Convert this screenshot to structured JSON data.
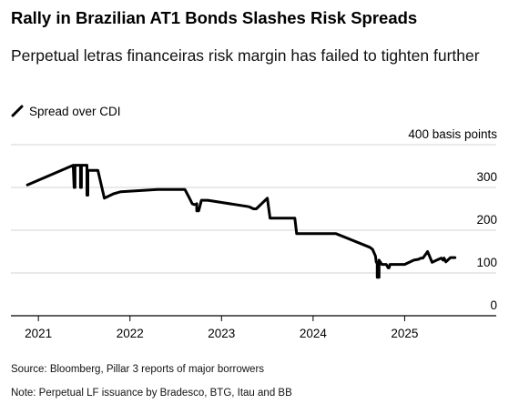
{
  "title": "Rally in Brazilian AT1 Bonds Slashes Risk Spreads",
  "subtitle": "Perpetual letras financeiras risk margin has failed to tighten further",
  "legend": {
    "series_label": "Spread over CDI"
  },
  "footer": {
    "source": "Source: Bloomberg, Pillar 3 reports of major borrowers",
    "note": "Note: Perpetual LF issuance by Bradesco, BTG, Itau and BB"
  },
  "colors": {
    "line": "#000000",
    "grid": "#d3d3d3",
    "axis": "#000000"
  },
  "chart_data": {
    "type": "line",
    "title": "Rally in Brazilian AT1 Bonds Slashes Risk Spreads",
    "subtitle": "Perpetual letras financeiras risk margin has failed to tighten further",
    "ylabel": "basis points",
    "ylim": [
      0,
      400
    ],
    "xlim": [
      2020.7,
      2026.0
    ],
    "y_ticks": [
      {
        "value": 0,
        "label": "0"
      },
      {
        "value": 100,
        "label": "100"
      },
      {
        "value": 200,
        "label": "200"
      },
      {
        "value": 300,
        "label": "300"
      },
      {
        "value": 400,
        "label": "400 basis points"
      }
    ],
    "x_ticks": [
      {
        "value": 2021,
        "label": "2021"
      },
      {
        "value": 2022,
        "label": "2022"
      },
      {
        "value": 2023,
        "label": "2023"
      },
      {
        "value": 2024,
        "label": "2024"
      },
      {
        "value": 2025,
        "label": "2025"
      }
    ],
    "grid": true,
    "legend_position": "top-left",
    "series": [
      {
        "name": "Spread over CDI",
        "x": [
          2020.88,
          2021.38,
          2021.38,
          2021.39,
          2021.4,
          2021.4,
          2021.45,
          2021.46,
          2021.46,
          2021.47,
          2021.47,
          2021.48,
          2021.48,
          2021.52,
          2021.52,
          2021.53,
          2021.53,
          2021.54,
          2021.54,
          2021.65,
          2021.72,
          2021.82,
          2021.9,
          2022.3,
          2022.6,
          2022.65,
          2022.68,
          2022.7,
          2022.72,
          2022.72,
          2022.73,
          2022.73,
          2022.75,
          2022.78,
          2022.85,
          2023.3,
          2023.35,
          2023.38,
          2023.5,
          2023.53,
          2023.75,
          2023.8,
          2023.82,
          2024.0,
          2024.25,
          2024.62,
          2024.65,
          2024.68,
          2024.69,
          2024.7,
          2024.7,
          2024.72,
          2024.72,
          2024.75,
          2024.8,
          2024.82,
          2024.83,
          2024.84,
          2024.85,
          2025.0,
          2025.1,
          2025.15,
          2025.18,
          2025.2,
          2025.25,
          2025.3,
          2025.35,
          2025.4,
          2025.42,
          2025.43,
          2025.45,
          2025.5,
          2025.55
        ],
        "values": [
          306,
          352,
          352,
          300,
          300,
          352,
          352,
          352,
          300,
          300,
          352,
          352,
          352,
          352,
          352,
          352,
          282,
          282,
          340,
          340,
          275,
          285,
          290,
          295,
          295,
          275,
          262,
          260,
          260,
          260,
          262,
          245,
          245,
          270,
          270,
          255,
          250,
          250,
          275,
          228,
          228,
          228,
          192,
          192,
          192,
          160,
          155,
          140,
          125,
          125,
          90,
          90,
          130,
          120,
          120,
          112,
          112,
          120,
          120,
          120,
          130,
          132,
          135,
          135,
          150,
          125,
          130,
          135,
          130,
          135,
          126,
          136,
          136
        ]
      }
    ]
  }
}
